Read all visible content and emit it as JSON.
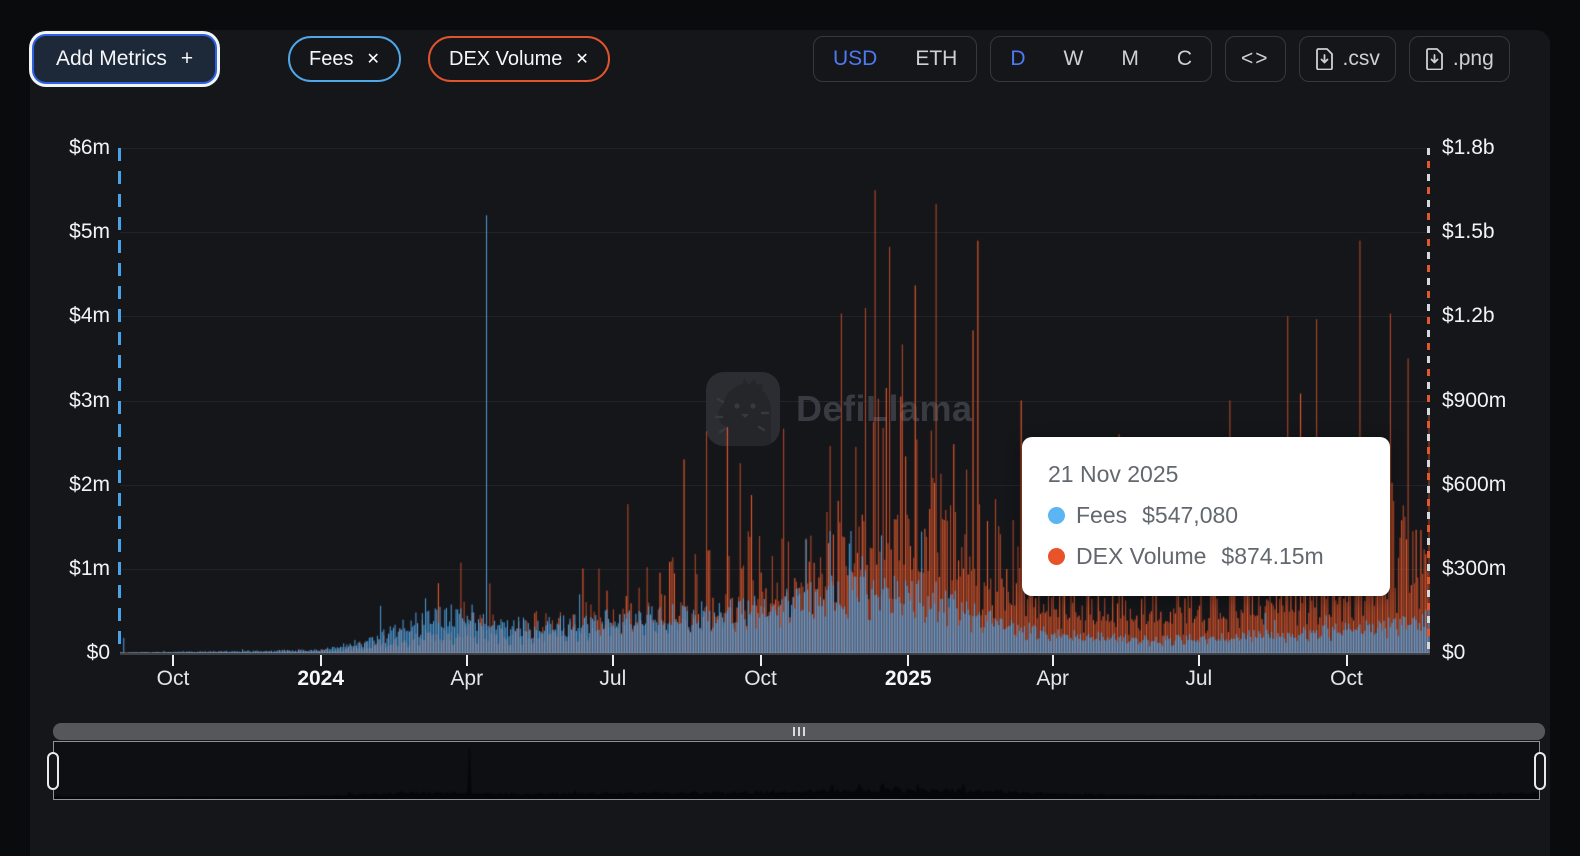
{
  "header": {
    "add_metrics_label": "Add Metrics",
    "add_metrics_plus": "+",
    "close_icon": "✕",
    "metric_pills": [
      {
        "label": "Fees",
        "color": "#4fa7e8"
      },
      {
        "label": "DEX Volume",
        "color": "#e0552c"
      }
    ],
    "currency_options": [
      "USD",
      "ETH"
    ],
    "currency_selected": "USD",
    "interval_options": [
      "D",
      "W",
      "M",
      "C"
    ],
    "interval_selected": "D",
    "embed_label": "<>",
    "csv_label": ".csv",
    "png_label": ".png"
  },
  "watermark": {
    "text": "DefiLlama"
  },
  "tooltip": {
    "date": "21 Nov 2025",
    "rows": [
      {
        "label": "Fees",
        "value": "$547,080",
        "color": "#5ab5f2"
      },
      {
        "label": "DEX Volume",
        "value": "$874.15m",
        "color": "#e8532a"
      }
    ]
  },
  "chart_data": {
    "type": "bar",
    "x_start": "2023-08-29",
    "x_end": "2025-11-21",
    "grid": true,
    "left_axis": {
      "series": "Fees",
      "max_usd": 6000000,
      "tick_labels": [
        "$6m",
        "$5m",
        "$4m",
        "$3m",
        "$2m",
        "$1m",
        "$0"
      ]
    },
    "right_axis": {
      "series": "DEX Volume",
      "max_usd": 1800000000,
      "tick_labels": [
        "$1.8b",
        "$1.5b",
        "$1.2b",
        "$900m",
        "$600m",
        "$300m",
        "$0"
      ]
    },
    "x_ticks": [
      {
        "label": "Oct",
        "date": "2023-10-01",
        "bold": false
      },
      {
        "label": "2024",
        "date": "2024-01-01",
        "bold": true
      },
      {
        "label": "Apr",
        "date": "2024-04-01",
        "bold": false
      },
      {
        "label": "Jul",
        "date": "2024-07-01",
        "bold": false
      },
      {
        "label": "Oct",
        "date": "2024-10-01",
        "bold": false
      },
      {
        "label": "2025",
        "date": "2025-01-01",
        "bold": true
      },
      {
        "label": "Apr",
        "date": "2025-04-01",
        "bold": false
      },
      {
        "label": "Jul",
        "date": "2025-07-01",
        "bold": false
      },
      {
        "label": "Oct",
        "date": "2025-10-01",
        "bold": false
      }
    ],
    "hovered_point": {
      "date": "2025-11-21",
      "fees_usd": 547080,
      "dex_volume_usd": 874150000
    },
    "series": [
      {
        "name": "Fees",
        "axis": "left",
        "color": "#4fa8e8",
        "unit": "USD/day",
        "envelope_keyframes_usd": [
          [
            "2023-08-29",
            6000
          ],
          [
            "2023-10-01",
            12000
          ],
          [
            "2024-01-01",
            36000
          ],
          [
            "2024-02-01",
            160000
          ],
          [
            "2024-03-01",
            380000
          ],
          [
            "2024-04-01",
            480000
          ],
          [
            "2024-05-01",
            330000
          ],
          [
            "2024-06-01",
            350000
          ],
          [
            "2024-07-01",
            410000
          ],
          [
            "2024-08-01",
            460000
          ],
          [
            "2024-09-01",
            450000
          ],
          [
            "2024-10-01",
            570000
          ],
          [
            "2024-11-01",
            680000
          ],
          [
            "2024-12-01",
            770000
          ],
          [
            "2025-01-10",
            700000
          ],
          [
            "2025-02-01",
            560000
          ],
          [
            "2025-03-01",
            344000
          ],
          [
            "2025-04-01",
            230000
          ],
          [
            "2025-05-01",
            200000
          ],
          [
            "2025-06-01",
            160000
          ],
          [
            "2025-07-01",
            182000
          ],
          [
            "2025-08-01",
            210000
          ],
          [
            "2025-09-01",
            235000
          ],
          [
            "2025-10-01",
            290000
          ],
          [
            "2025-11-01",
            360000
          ],
          [
            "2025-11-21",
            410000
          ]
        ],
        "spike_days_usd": [
          [
            "2023-08-31",
            180000
          ],
          [
            "2024-03-06",
            650000
          ],
          [
            "2024-04-13",
            5200000
          ],
          [
            "2024-11-25",
            1300000
          ],
          [
            "2024-12-03",
            1150000
          ],
          [
            "2025-11-21",
            547080
          ]
        ]
      },
      {
        "name": "DEX Volume",
        "axis": "right",
        "color": "#e2572c",
        "unit": "USD/day",
        "envelope_keyframes_usd": [
          [
            "2023-08-29",
            1500000
          ],
          [
            "2023-10-01",
            3000000
          ],
          [
            "2023-11-15",
            5000000
          ],
          [
            "2024-01-01",
            9000000
          ],
          [
            "2024-02-01",
            40000000
          ],
          [
            "2024-03-01",
            95000000
          ],
          [
            "2024-04-01",
            120000000
          ],
          [
            "2024-05-01",
            105000000
          ],
          [
            "2024-06-01",
            140000000
          ],
          [
            "2024-07-01",
            205000000
          ],
          [
            "2024-08-01",
            265000000
          ],
          [
            "2024-09-01",
            300000000
          ],
          [
            "2024-10-01",
            380000000
          ],
          [
            "2024-11-01",
            520000000
          ],
          [
            "2024-12-01",
            700000000
          ],
          [
            "2024-12-15",
            760000000
          ],
          [
            "2025-01-10",
            680000000
          ],
          [
            "2025-02-01",
            600000000
          ],
          [
            "2025-03-01",
            430000000
          ],
          [
            "2025-04-01",
            290000000
          ],
          [
            "2025-05-01",
            265000000
          ],
          [
            "2025-06-01",
            225000000
          ],
          [
            "2025-07-01",
            260000000
          ],
          [
            "2025-08-01",
            305000000
          ],
          [
            "2025-09-01",
            345000000
          ],
          [
            "2025-10-01",
            430000000
          ],
          [
            "2025-11-01",
            540000000
          ],
          [
            "2025-11-21",
            620000000
          ]
        ],
        "spike_days_usd": [
          [
            "2024-08-14",
            690000000
          ],
          [
            "2024-10-15",
            800000000
          ],
          [
            "2024-11-20",
            1210000000
          ],
          [
            "2024-12-05",
            1230000000
          ],
          [
            "2024-12-11",
            1650000000
          ],
          [
            "2024-12-28",
            1100000000
          ],
          [
            "2025-01-05",
            1310000000
          ],
          [
            "2025-01-18",
            1600000000
          ],
          [
            "2025-02-10",
            1150000000
          ],
          [
            "2025-03-12",
            900000000
          ],
          [
            "2025-04-14",
            600000000
          ],
          [
            "2025-05-12",
            780000000
          ],
          [
            "2025-07-20",
            900000000
          ],
          [
            "2025-08-25",
            1200000000
          ],
          [
            "2025-09-12",
            1190000000
          ],
          [
            "2025-10-09",
            1470000000
          ],
          [
            "2025-10-28",
            1210000000
          ],
          [
            "2025-11-08",
            1050000000
          ],
          [
            "2025-11-21",
            874150000
          ]
        ]
      }
    ]
  }
}
